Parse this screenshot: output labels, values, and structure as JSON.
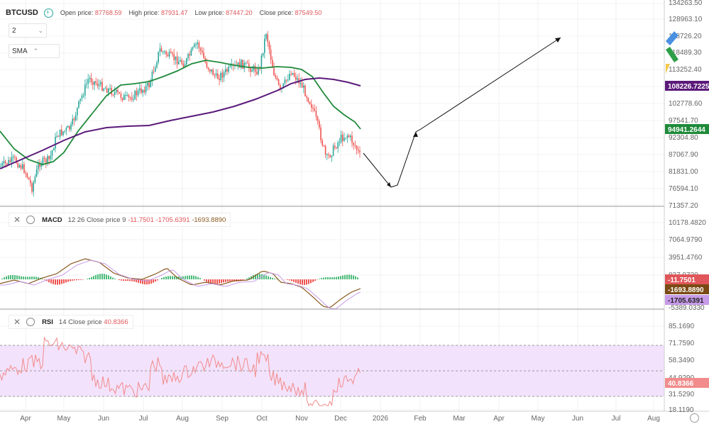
{
  "header": {
    "symbol": "BTCUSD",
    "open_label": "Open price:",
    "open_value": "87768.59",
    "high_label": "High price:",
    "high_value": "87931.47",
    "low_label": "Low price:",
    "low_value": "87447.20",
    "close_label": "Close price:",
    "close_value": "87549.50",
    "clock_icon": "clock-icon"
  },
  "controls": {
    "period_value": "2",
    "indicator_value": "SMA"
  },
  "price_axis": {
    "ticks": [
      "134263.50",
      "128963.10",
      "118726.20",
      "118489.30",
      "113252.40",
      "102778.60",
      "97541.70",
      "92304.80",
      "87067.90",
      "81831.00",
      "76594.10",
      "71357.20"
    ]
  },
  "price_badges": [
    {
      "text": "108226.7225",
      "color": "#5b1a7a"
    },
    {
      "text": "94941.2644",
      "color": "#1f8a3a"
    }
  ],
  "macd": {
    "name": "MACD",
    "params": "12 26 Close price 9",
    "v1": "-11.7501",
    "v2": "-1705.6391",
    "v3": "-1693.8890",
    "ticks": [
      "10178.4820",
      "7064.9790",
      "3951.4760",
      "837.9730",
      "-5389.0330"
    ],
    "badges": [
      {
        "text": "-11.7501",
        "color": "#e0565a"
      },
      {
        "text": "-1693.8890",
        "color": "#7a4a14"
      },
      {
        "text": "-1705.6391",
        "color": "#c79be8"
      }
    ]
  },
  "rsi": {
    "name": "RSI",
    "params": "14 Close price",
    "value": "40.8366",
    "ticks": [
      "85.1690",
      "71.7590",
      "58.3490",
      "44.9290",
      "31.5290",
      "18.1190"
    ],
    "badge": {
      "text": "40.8366",
      "color": "#f28c8c"
    }
  },
  "time_axis": {
    "labels": [
      "Apr",
      "May",
      "Jun",
      "Jul",
      "Aug",
      "Sep",
      "Oct",
      "Nov",
      "Dec",
      "2026",
      "Feb",
      "Mar",
      "Apr",
      "May",
      "Jun",
      "Jul",
      "Aug"
    ]
  },
  "colors": {
    "up": "#26a69a",
    "down": "#ef5350",
    "sma_fast": "#1f8a3a",
    "sma_slow": "#5b1a7a",
    "rsi_band": "#f3e2fb",
    "rsi_line": "#f28c8c"
  }
}
